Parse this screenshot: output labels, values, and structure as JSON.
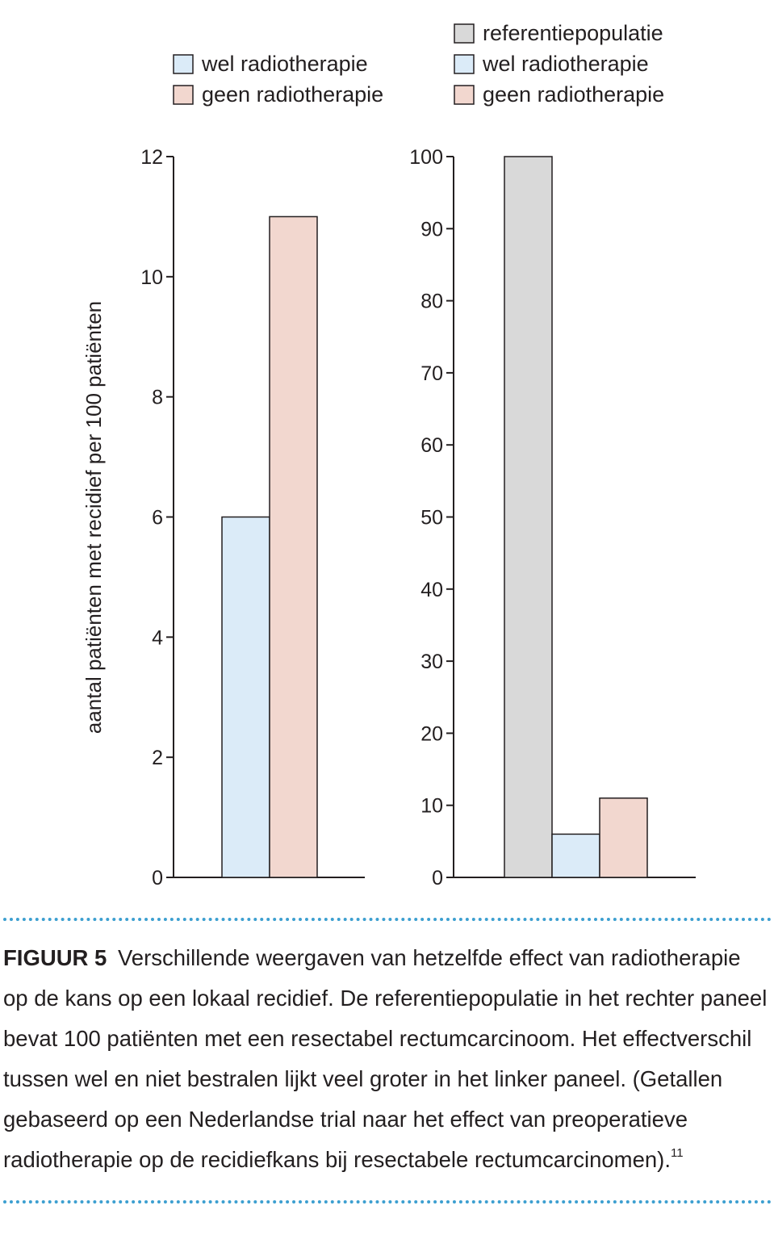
{
  "colors": {
    "reference": "#d9d9d9",
    "with_radiotherapy": "#dbebf8",
    "without_radiotherapy": "#f2d7cf",
    "text": "#231f20",
    "rule": "#3c9fd0"
  },
  "chart_data": [
    {
      "type": "bar",
      "title": "",
      "ylabel": "aantal patiënten met recidief per 100 patiënten",
      "xlabel": "",
      "ylim": [
        0,
        12
      ],
      "yticks": [
        "0",
        "2",
        "4",
        "6",
        "8",
        "10",
        "12"
      ],
      "legend": [
        "wel radiotherapie",
        "geen radiotherapie"
      ],
      "series": [
        {
          "name": "wel radiotherapie",
          "value": 6,
          "color_key": "with_radiotherapy"
        },
        {
          "name": "geen radiotherapie",
          "value": 11,
          "color_key": "without_radiotherapy"
        }
      ]
    },
    {
      "type": "bar",
      "title": "",
      "ylabel": "",
      "xlabel": "",
      "ylim": [
        0,
        100
      ],
      "yticks": [
        "0",
        "10",
        "20",
        "30",
        "40",
        "50",
        "60",
        "70",
        "80",
        "90",
        "100"
      ],
      "legend": [
        "referentiepopulatie",
        "wel radiotherapie",
        "geen radiotherapie"
      ],
      "series": [
        {
          "name": "referentiepopulatie",
          "value": 100,
          "color_key": "reference"
        },
        {
          "name": "wel radiotherapie",
          "value": 6,
          "color_key": "with_radiotherapy"
        },
        {
          "name": "geen radiotherapie",
          "value": 11,
          "color_key": "without_radiotherapy"
        }
      ]
    }
  ],
  "caption": {
    "label": "FIGUUR 5",
    "text": "Verschillende weergaven van hetzelfde effect van radiotherapie op de kans op een lokaal recidief. De referentiepopulatie in het rechter paneel bevat 100 patiënten met een resectabel rectumcarcinoom. Het effectverschil tussen wel en niet bestralen lijkt veel groter in het linker paneel. (Getallen gebaseerd op een Nederlandse trial naar het effect van preoperatieve radiotherapie op de recidiefkans bij resectabele rectumcarcinomen).",
    "reference": "11"
  }
}
